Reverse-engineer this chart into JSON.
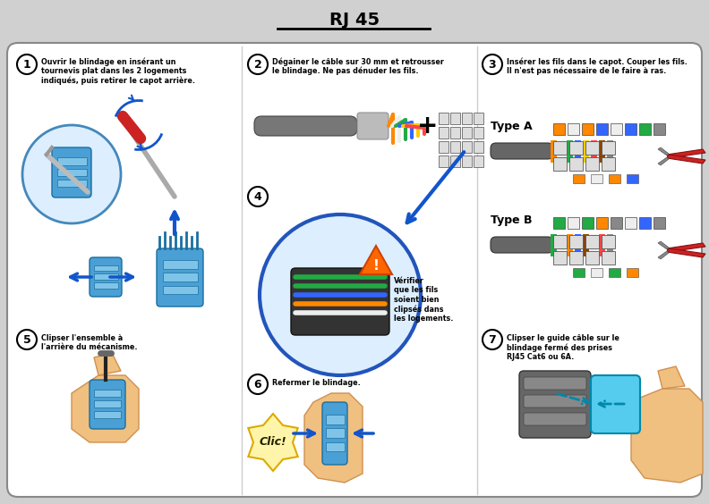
{
  "title": "RJ 45",
  "bg_outer": "#d0d0d0",
  "bg_panel": "#f5f5f5",
  "bg_white": "#ffffff",
  "border_color": "#999999",
  "title_fontsize": 14,
  "step_text_size": 6.2,
  "step1_text": "Ouvrir le blindage en insérant un\ntournevis plat dans les 2 logements\nindiqués, puis retirer le capot arrière.",
  "step2_text": "Dégainer le câble sur 30 mm et retrousser\nle blindage. Ne pas dénuder les fils.",
  "step3_text": "Insérer les fils dans le capot. Couper les fils.\nIl n'est pas nécessaire de le faire à ras.",
  "step4_text": "Vérifier\nque les fils\nsoient bien\nclipsés dans\nles logements.",
  "step5_text": "Clipser l'ensemble à\nl'arrière du mécanisme.",
  "step6_text": "Refermer le blindage.",
  "step7_text": "Clipser le guide câble sur le\nblindage fermé des prises\nRJ45 Cat6 ou 6A.",
  "type_a": "Type A",
  "type_b": "Type B",
  "clic": "Clic!",
  "blue_connector": "#4a9fd4",
  "blue_dark": "#1a6fa0",
  "blue_light": "#7fc4e8",
  "cyan_guide": "#55ccee",
  "red_tool": "#cc2222",
  "skin": "#f0c080",
  "skin_dark": "#d09050",
  "gray_cable": "#888888",
  "gray_dark": "#555555",
  "gray_light": "#cccccc",
  "orange_wire": "#ff8800",
  "green_wire": "#22aa44",
  "white_wire": "#eeeeee",
  "brown_wire": "#885522",
  "teal_wire": "#22aaaa",
  "yellow_wire": "#ddcc00",
  "warning_orange": "#ff6600",
  "arrow_blue": "#1155cc",
  "type_a_colors": [
    "#ff8800",
    "#eeeeee",
    "#ff8800",
    "#3366ff",
    "#eeeeee",
    "#3366ff",
    "#22aa44",
    "#888888"
  ],
  "type_b_colors": [
    "#22aa44",
    "#eeeeee",
    "#22aa44",
    "#ff8800",
    "#888888",
    "#eeeeee",
    "#3366ff",
    "#888888"
  ]
}
